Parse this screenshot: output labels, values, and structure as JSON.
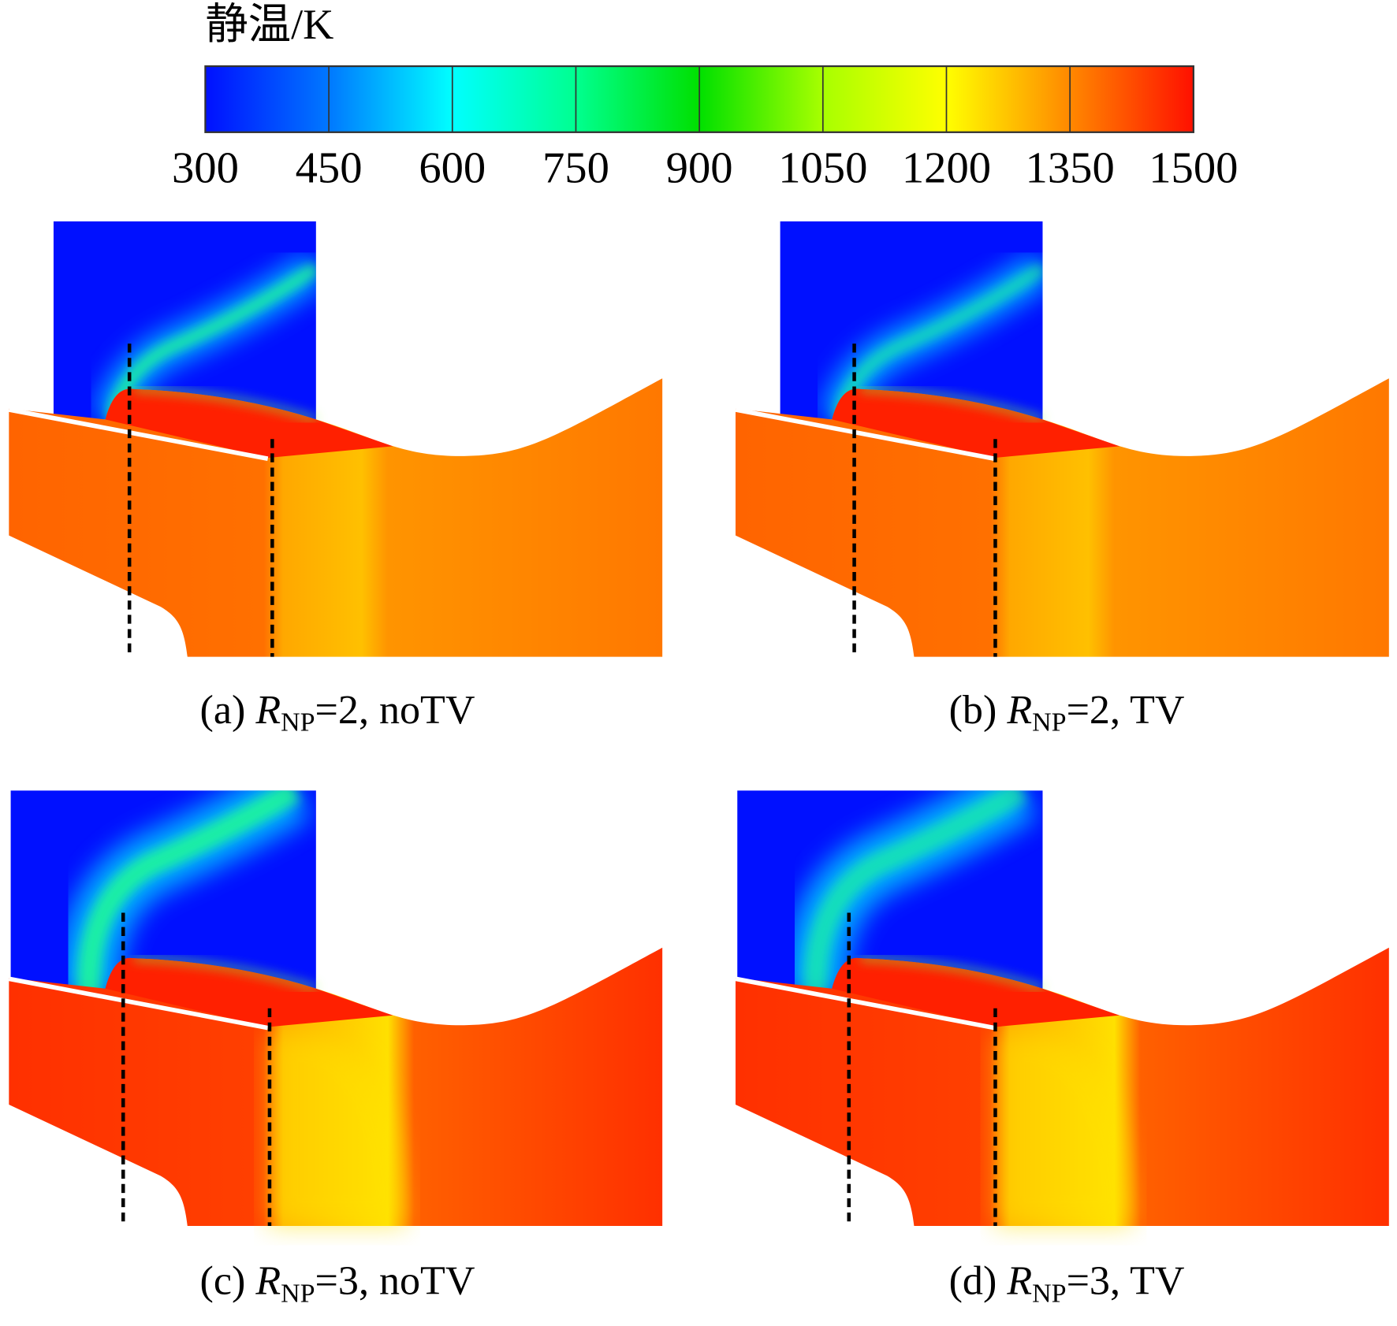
{
  "colorbar": {
    "title": "静温/K",
    "range": [
      300,
      1500
    ],
    "ticks": [
      300,
      450,
      600,
      750,
      900,
      1050,
      1200,
      1350,
      1500
    ]
  },
  "panels": [
    {
      "tag": "(a) ",
      "symbol": "R",
      "subscript": "NP",
      "suffix": "=2, noTV"
    },
    {
      "tag": "(b) ",
      "symbol": "R",
      "subscript": "NP",
      "suffix": "=2, TV"
    },
    {
      "tag": "(c) ",
      "symbol": "R",
      "subscript": "NP",
      "suffix": "=3, noTV"
    },
    {
      "tag": "(d) ",
      "symbol": "R",
      "subscript": "NP",
      "suffix": "=3, TV"
    }
  ]
}
